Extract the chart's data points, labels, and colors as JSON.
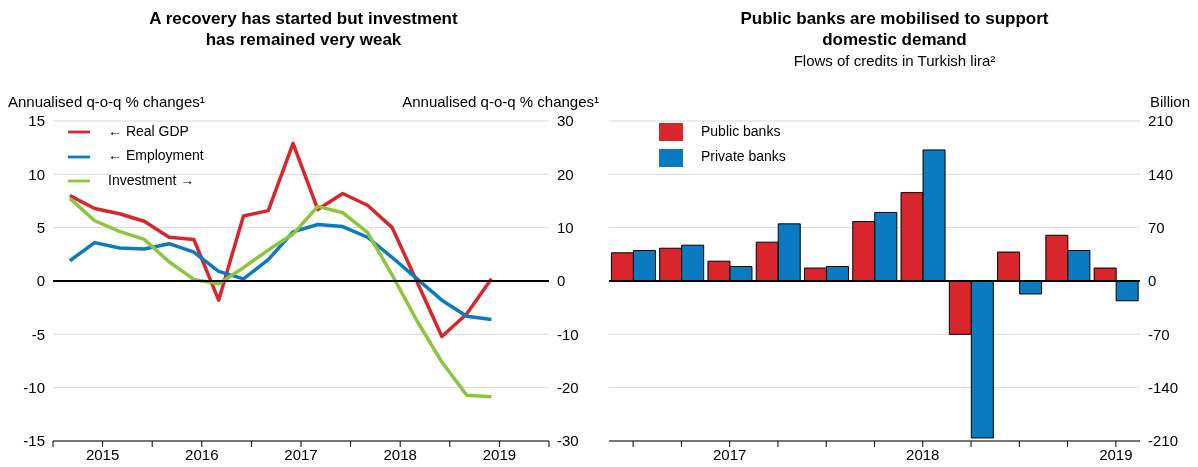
{
  "chart_data": [
    {
      "type": "line",
      "title": "A recovery has started but investment has remained very weak",
      "ylabel": "Annualised q-o-q % changes¹",
      "y2label": "Annualised q-o-q % changes¹",
      "x": [
        2015.17,
        2015.42,
        2015.67,
        2015.92,
        2016.17,
        2016.42,
        2016.67,
        2016.92,
        2017.17,
        2017.42,
        2017.67,
        2017.92,
        2018.17,
        2018.42,
        2018.67,
        2018.92,
        2019.17,
        2019.42
      ],
      "xlim": [
        2015,
        2020
      ],
      "xticks": [
        {
          "value": 2015,
          "label": null
        },
        {
          "value": 2015.5,
          "label": "2015"
        },
        {
          "value": 2016,
          "label": null
        },
        {
          "value": 2016.5,
          "label": "2016"
        },
        {
          "value": 2017,
          "label": null
        },
        {
          "value": 2017.5,
          "label": "2017"
        },
        {
          "value": 2018,
          "label": null
        },
        {
          "value": 2018.5,
          "label": "2018"
        },
        {
          "value": 2019,
          "label": null
        },
        {
          "value": 2019.5,
          "label": "2019"
        },
        {
          "value": 2020,
          "label": null
        }
      ],
      "ylim": [
        -15,
        15
      ],
      "yticks": [
        -15,
        -10,
        -5,
        0,
        5,
        10,
        15
      ],
      "y2lim": [
        -30,
        30
      ],
      "y2ticks": [
        -30,
        -20,
        -10,
        0,
        10,
        20,
        30
      ],
      "grid": "y",
      "legend": "top left",
      "ref_lines": [
        {
          "axis": "y",
          "value": 0,
          "color": "#000000"
        }
      ],
      "series": [
        {
          "name": "← Real GDP",
          "color": "#d9262c",
          "values": [
            8.0,
            6.8,
            6.3,
            5.6,
            4.1,
            3.9,
            -1.8,
            6.1,
            6.6,
            12.9,
            6.7,
            8.2,
            7.1,
            5.0,
            -0.1,
            -5.2,
            -3.1,
            0.2
          ]
        },
        {
          "name": "← Employment",
          "color": "#0b7bc1",
          "values": [
            1.9,
            3.6,
            3.1,
            3.0,
            3.5,
            2.7,
            0.9,
            0.2,
            2.0,
            4.6,
            5.3,
            5.1,
            4.1,
            2.2,
            0.2,
            -1.8,
            -3.3,
            -3.6
          ]
        },
        {
          "name": "Investment →",
          "color": "#8cc63f",
          "axis": "y2",
          "values": [
            15.5,
            11.3,
            9.3,
            7.8,
            3.6,
            0.3,
            -0.5,
            2.5,
            5.8,
            8.8,
            14.0,
            12.8,
            9.1,
            1.1,
            -7.5,
            -15.2,
            -21.4,
            -21.7
          ]
        }
      ]
    },
    {
      "type": "bar",
      "title": "Public banks are mobilised to support domestic demand",
      "subtitle": "Flows of credits in Turkish lira²",
      "y2label": "Billion",
      "categories": [
        null,
        null,
        "2017",
        null,
        null,
        null,
        "2018",
        null,
        null,
        null,
        "2019"
      ],
      "y2lim": [
        -210,
        210
      ],
      "y2ticks": [
        -210,
        -140,
        -70,
        0,
        70,
        140,
        210
      ],
      "grid": "y",
      "legend": "top left",
      "ref_lines": [
        {
          "axis": "y2",
          "value": 0,
          "color": "#000000"
        }
      ],
      "series": [
        {
          "name": "Public banks",
          "color": "#d9262c",
          "axis": "y2",
          "values": [
            37,
            43,
            26,
            51,
            17,
            78,
            116,
            -70,
            38,
            60,
            17
          ]
        },
        {
          "name": "Private banks",
          "color": "#0b7bc1",
          "axis": "y2",
          "values": [
            40,
            47,
            19,
            75,
            19,
            90,
            172,
            -206,
            -17,
            40,
            -26
          ]
        }
      ]
    }
  ]
}
